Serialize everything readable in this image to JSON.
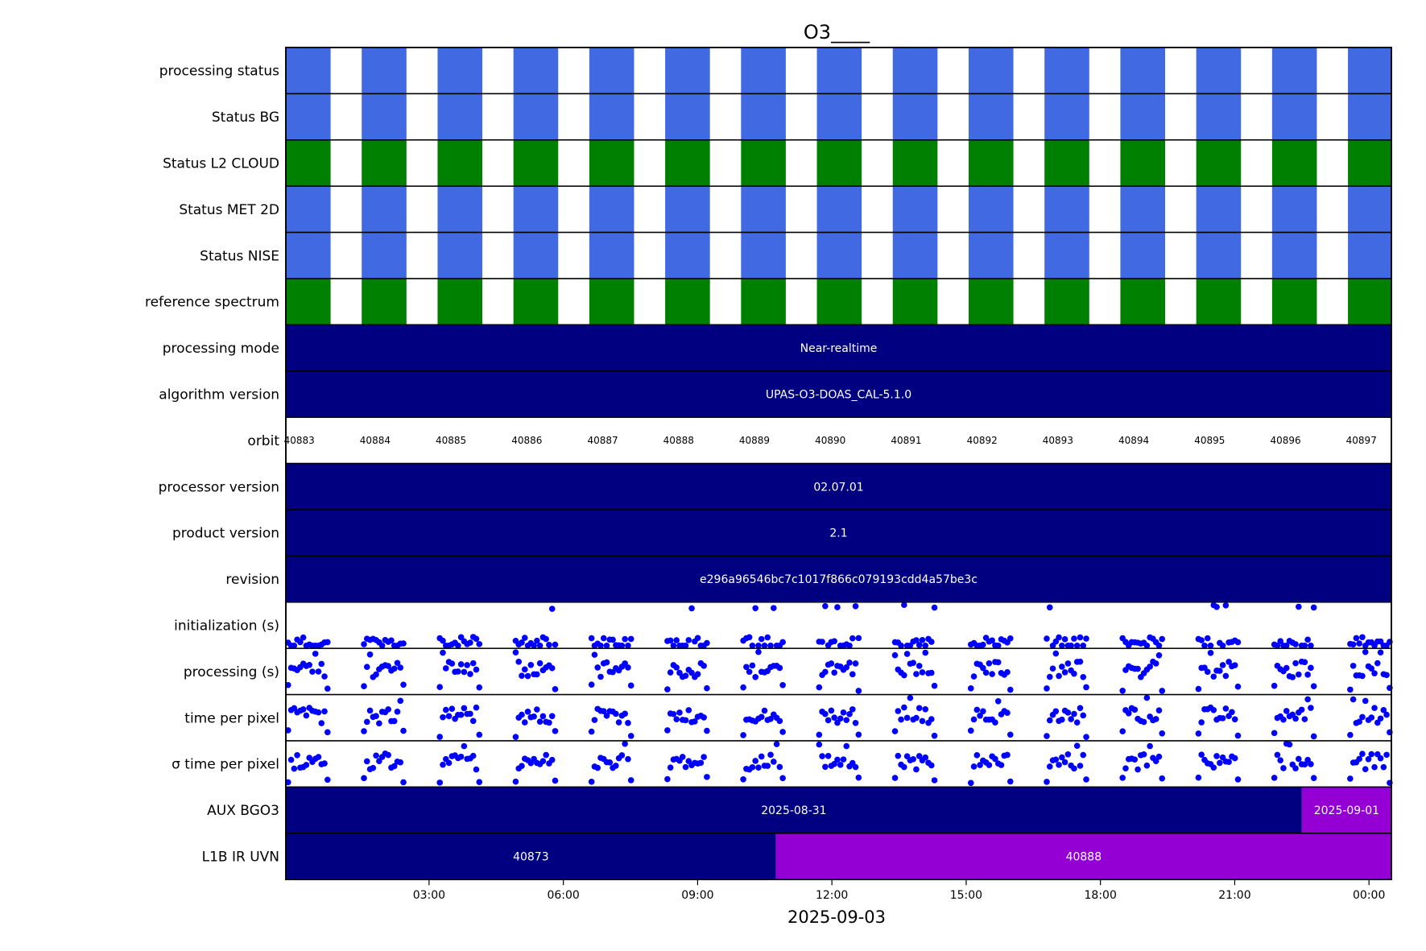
{
  "chart_data": {
    "type": "timeline",
    "title": "O3____",
    "xlabel": "2025-09-03",
    "xlim_hours": [
      -3.2,
      21.5
    ],
    "x_tick_labels": [
      "03:00",
      "06:00",
      "09:00",
      "12:00",
      "15:00",
      "18:00",
      "21:00",
      "00:00"
    ],
    "x_tick_hours": [
      0,
      3,
      6,
      9,
      12,
      15,
      18,
      21
    ],
    "orbit_period_hours": 1.695,
    "first_orbit_start_hours": -3.2,
    "granule_on_hours": 1.0,
    "colors": {
      "ok": "#4169e1",
      "nominal": "#008000",
      "navy": "#000080",
      "violet": "#9400d3",
      "points": "#0000ff",
      "white": "#ffffff"
    },
    "rows": [
      {
        "label": "processing status",
        "kind": "status",
        "color": "#4169e1"
      },
      {
        "label": "Status BG",
        "kind": "status",
        "color": "#4169e1"
      },
      {
        "label": "Status L2  CLOUD",
        "kind": "status",
        "color": "#008000"
      },
      {
        "label": "Status MET 2D",
        "kind": "status",
        "color": "#4169e1"
      },
      {
        "label": "Status NISE",
        "kind": "status",
        "color": "#4169e1"
      },
      {
        "label": "reference spectrum",
        "kind": "status",
        "color": "#008000"
      },
      {
        "label": "processing mode",
        "kind": "segments",
        "segments": [
          {
            "from": -3.2,
            "to": 21.5,
            "color": "#000080",
            "text": "Near-realtime"
          }
        ]
      },
      {
        "label": "algorithm version",
        "kind": "segments",
        "segments": [
          {
            "from": -3.2,
            "to": 21.5,
            "color": "#000080",
            "text": "UPAS-O3-DOAS_CAL-5.1.0"
          }
        ]
      },
      {
        "label": "orbit",
        "kind": "orbits",
        "orbits": [
          "40883",
          "40884",
          "40885",
          "40886",
          "40887",
          "40888",
          "40889",
          "40890",
          "40891",
          "40892",
          "40893",
          "40894",
          "40895",
          "40896",
          "40897"
        ]
      },
      {
        "label": "processor version",
        "kind": "segments",
        "segments": [
          {
            "from": -3.2,
            "to": 21.5,
            "color": "#000080",
            "text": "02.07.01"
          }
        ]
      },
      {
        "label": "product version",
        "kind": "segments",
        "segments": [
          {
            "from": -3.2,
            "to": 21.5,
            "color": "#000080",
            "text": "2.1"
          }
        ]
      },
      {
        "label": "revision",
        "kind": "segments",
        "segments": [
          {
            "from": -3.2,
            "to": 21.5,
            "color": "#000080",
            "text": "e296a96546bc7c1017f866c079193cdd4a57be3c"
          }
        ]
      },
      {
        "label": "initialization (s)",
        "kind": "scatter",
        "seed": 11,
        "base": 0.1,
        "spread": 0.3
      },
      {
        "label": "processing (s)",
        "kind": "scatter",
        "seed": 23,
        "base": 0.55,
        "spread": 0.35
      },
      {
        "label": "time per pixel",
        "kind": "scatter",
        "seed": 37,
        "base": 0.55,
        "spread": 0.35
      },
      {
        "label": "σ time per pixel",
        "kind": "scatter",
        "seed": 41,
        "base": 0.55,
        "spread": 0.35
      },
      {
        "label": "AUX BGO3",
        "kind": "segments",
        "segments": [
          {
            "from": -3.2,
            "to": 19.5,
            "color": "#000080",
            "text": "2025-08-31"
          },
          {
            "from": 19.5,
            "to": 21.5,
            "color": "#9400d3",
            "text": "2025-09-01"
          }
        ]
      },
      {
        "label": "L1B IR UVN",
        "kind": "segments",
        "segments": [
          {
            "from": -3.2,
            "to": 7.75,
            "color": "#000080",
            "text": "40873"
          },
          {
            "from": 7.75,
            "to": 21.5,
            "color": "#9400d3",
            "text": "40888"
          }
        ]
      }
    ]
  }
}
